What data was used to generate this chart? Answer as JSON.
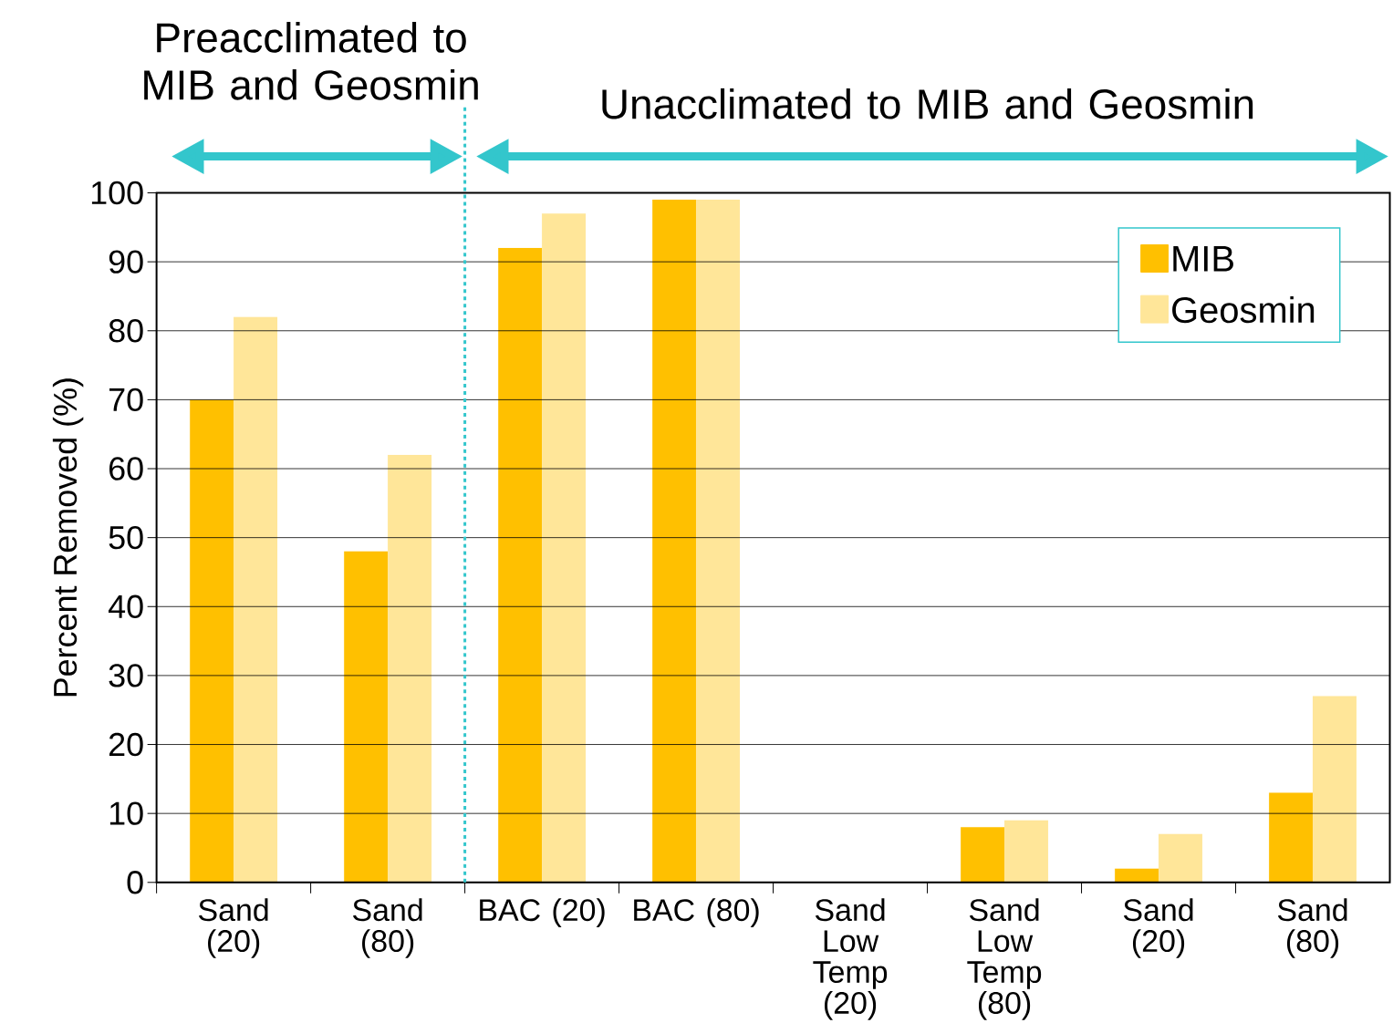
{
  "chart_data": {
    "type": "bar",
    "ylabel": "Percent Removed (%)",
    "categories": [
      "Sand (20)",
      "Sand (80)",
      "BAC (20)",
      "BAC (80)",
      "Sand Low Temp (20)",
      "Sand Low Temp (80)",
      "Sand (20)",
      "Sand (80)"
    ],
    "series": [
      {
        "name": "MIB",
        "color": "#ffc000",
        "values": [
          70,
          48,
          92,
          99,
          0,
          8,
          2,
          13
        ]
      },
      {
        "name": "Geosmin",
        "color": "#ffe699",
        "values": [
          82,
          62,
          97,
          99,
          0,
          9,
          7,
          27
        ]
      }
    ],
    "ylim": [
      0,
      100
    ],
    "yticks": [
      0,
      10,
      20,
      30,
      40,
      50,
      60,
      70,
      80,
      90,
      100
    ],
    "grid": "y",
    "legend": "top right",
    "annotations": [
      "Preacclimated to MIB and Geosmin",
      "Unacclimated to MIB and Geosmin"
    ]
  }
}
